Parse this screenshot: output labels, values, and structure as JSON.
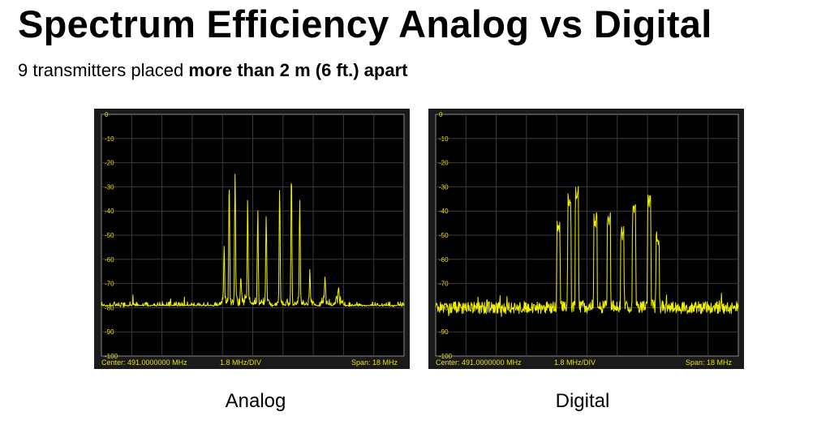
{
  "title": "Spectrum Efficiency Analog vs Digital",
  "subtitle": {
    "normal": "9 transmitters placed ",
    "bold": "more than 2 m (6 ft.) apart"
  },
  "colors": {
    "background": "#ffffff",
    "plot_bg": "#000000",
    "frame": "#1a1a1a",
    "grid": "#3a3a3a",
    "trace": "#f0f000",
    "text_yellow": "#e8e000"
  },
  "chart_data": [
    {
      "type": "line",
      "caption": "Analog",
      "ylim": [
        -100,
        0
      ],
      "yticks": [
        0,
        -10,
        -20,
        -30,
        -40,
        -50,
        -60,
        -70,
        -80,
        -90,
        -100
      ],
      "x_divisions": 10,
      "x_range_mhz": [
        482.0,
        500.0
      ],
      "noise_floor_db": -80,
      "footer": {
        "center": "Center: 491.0000000 MHz",
        "div": "1.8 MHz/DIV",
        "span": "Span: 18 MHz"
      },
      "peaks": [
        {
          "x": 489.3,
          "y": -58
        },
        {
          "x": 489.6,
          "y": -30
        },
        {
          "x": 489.95,
          "y": -24
        },
        {
          "x": 490.3,
          "y": -70
        },
        {
          "x": 490.7,
          "y": -37
        },
        {
          "x": 491.3,
          "y": -40
        },
        {
          "x": 491.8,
          "y": -42
        },
        {
          "x": 492.6,
          "y": -31
        },
        {
          "x": 493.3,
          "y": -25
        },
        {
          "x": 493.8,
          "y": -38
        },
        {
          "x": 494.4,
          "y": -66
        },
        {
          "x": 495.3,
          "y": -69
        },
        {
          "x": 496.1,
          "y": -72
        }
      ]
    },
    {
      "type": "line",
      "caption": "Digital",
      "ylim": [
        -100,
        0
      ],
      "yticks": [
        0,
        -10,
        -20,
        -30,
        -40,
        -50,
        -60,
        -70,
        -80,
        -90,
        -100
      ],
      "x_divisions": 10,
      "x_range_mhz": [
        482.0,
        500.0
      ],
      "noise_floor_db": -80,
      "footer": {
        "center": "Center: 491.0000000 MHz",
        "div": "1.8 MHz/DIV",
        "span": "Span: 18 MHz"
      },
      "peaks": [
        {
          "x": 489.3,
          "y": -45
        },
        {
          "x": 489.95,
          "y": -34
        },
        {
          "x": 490.4,
          "y": -31
        },
        {
          "x": 491.5,
          "y": -41
        },
        {
          "x": 492.3,
          "y": -42
        },
        {
          "x": 493.1,
          "y": -46
        },
        {
          "x": 493.8,
          "y": -37
        },
        {
          "x": 494.7,
          "y": -33
        },
        {
          "x": 495.2,
          "y": -49
        }
      ]
    }
  ]
}
